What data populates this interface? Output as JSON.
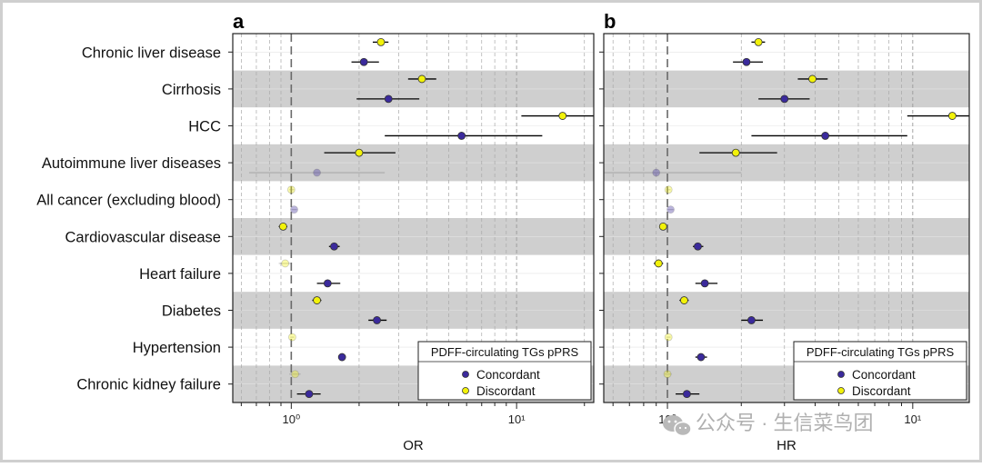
{
  "chart_data": {
    "type": "scatter",
    "panels": [
      {
        "id": "a",
        "panel_label": "a",
        "xlabel": "OR",
        "x_scale": "log",
        "xlim": [
          0.55,
          22
        ],
        "tick_labels": [
          "10⁰",
          "10¹"
        ],
        "tick_values": [
          1,
          10
        ],
        "reference_line": 1
      },
      {
        "id": "b",
        "panel_label": "b",
        "xlabel": "HR",
        "x_scale": "log",
        "xlim": [
          0.55,
          17
        ],
        "tick_labels": [
          "10⁰",
          "10¹"
        ],
        "tick_values": [
          1,
          10
        ],
        "reference_line": 1
      }
    ],
    "categories": [
      "Chronic liver disease",
      "Cirrhosis",
      "HCC",
      "Autoimmune liver diseases",
      "All cancer (excluding blood)",
      "Cardiovascular disease",
      "Heart failure",
      "Diabetes",
      "Hypertension",
      "Chronic kidney failure"
    ],
    "legend": {
      "title": "PDFF-circulating TGs pPRS",
      "placement": "bottom-right",
      "entries": [
        "Concordant",
        "Discordant"
      ]
    },
    "series": [
      {
        "name": "Discordant",
        "color": "#f2f20a",
        "points": {
          "a": [
            {
              "est": 2.5,
              "lo": 2.3,
              "hi": 2.7,
              "sig": true
            },
            {
              "est": 3.8,
              "lo": 3.3,
              "hi": 4.4,
              "sig": true
            },
            {
              "est": 16,
              "lo": 10.5,
              "hi": 24,
              "sig": true
            },
            {
              "est": 2.0,
              "lo": 1.4,
              "hi": 2.9,
              "sig": true
            },
            {
              "est": 1.0,
              "lo": 0.98,
              "hi": 1.03,
              "sig": false
            },
            {
              "est": 0.92,
              "lo": 0.88,
              "hi": 0.96,
              "sig": true
            },
            {
              "est": 0.94,
              "lo": 0.88,
              "hi": 1.0,
              "sig": false
            },
            {
              "est": 1.3,
              "lo": 1.24,
              "hi": 1.36,
              "sig": true
            },
            {
              "est": 1.01,
              "lo": 0.99,
              "hi": 1.03,
              "sig": false
            },
            {
              "est": 1.04,
              "lo": 0.98,
              "hi": 1.1,
              "sig": false
            }
          ],
          "b": [
            {
              "est": 2.35,
              "lo": 2.2,
              "hi": 2.5,
              "sig": true
            },
            {
              "est": 3.9,
              "lo": 3.4,
              "hi": 4.5,
              "sig": true
            },
            {
              "est": 14.5,
              "lo": 9.5,
              "hi": 22,
              "sig": true
            },
            {
              "est": 1.9,
              "lo": 1.35,
              "hi": 2.8,
              "sig": true
            },
            {
              "est": 1.01,
              "lo": 0.99,
              "hi": 1.03,
              "sig": false
            },
            {
              "est": 0.96,
              "lo": 0.93,
              "hi": 0.99,
              "sig": true
            },
            {
              "est": 0.92,
              "lo": 0.88,
              "hi": 0.96,
              "sig": true
            },
            {
              "est": 1.17,
              "lo": 1.12,
              "hi": 1.22,
              "sig": true
            },
            {
              "est": 1.01,
              "lo": 0.99,
              "hi": 1.03,
              "sig": false
            },
            {
              "est": 1.0,
              "lo": 0.97,
              "hi": 1.04,
              "sig": false
            }
          ]
        }
      },
      {
        "name": "Concordant",
        "color": "#3b2a9c",
        "points": {
          "a": [
            {
              "est": 2.1,
              "lo": 1.85,
              "hi": 2.45,
              "sig": true
            },
            {
              "est": 2.7,
              "lo": 1.95,
              "hi": 3.7,
              "sig": true
            },
            {
              "est": 5.7,
              "lo": 2.6,
              "hi": 13,
              "sig": true
            },
            {
              "est": 1.3,
              "lo": 0.65,
              "hi": 2.6,
              "sig": false
            },
            {
              "est": 1.03,
              "lo": 1.0,
              "hi": 1.06,
              "sig": false
            },
            {
              "est": 1.55,
              "lo": 1.47,
              "hi": 1.64,
              "sig": true
            },
            {
              "est": 1.45,
              "lo": 1.3,
              "hi": 1.65,
              "sig": true
            },
            {
              "est": 2.4,
              "lo": 2.2,
              "hi": 2.65,
              "sig": true
            },
            {
              "est": 1.68,
              "lo": 1.62,
              "hi": 1.74,
              "sig": true
            },
            {
              "est": 1.2,
              "lo": 1.06,
              "hi": 1.35,
              "sig": true
            }
          ],
          "b": [
            {
              "est": 2.1,
              "lo": 1.85,
              "hi": 2.45,
              "sig": true
            },
            {
              "est": 3.0,
              "lo": 2.35,
              "hi": 3.8,
              "sig": true
            },
            {
              "est": 4.4,
              "lo": 2.2,
              "hi": 9.5,
              "sig": true
            },
            {
              "est": 0.9,
              "lo": 0.45,
              "hi": 2.0,
              "sig": false
            },
            {
              "est": 1.03,
              "lo": 1.0,
              "hi": 1.06,
              "sig": false
            },
            {
              "est": 1.33,
              "lo": 1.27,
              "hi": 1.4,
              "sig": true
            },
            {
              "est": 1.42,
              "lo": 1.3,
              "hi": 1.6,
              "sig": true
            },
            {
              "est": 2.2,
              "lo": 2.0,
              "hi": 2.45,
              "sig": true
            },
            {
              "est": 1.37,
              "lo": 1.3,
              "hi": 1.45,
              "sig": true
            },
            {
              "est": 1.2,
              "lo": 1.08,
              "hi": 1.35,
              "sig": true
            }
          ]
        }
      }
    ]
  },
  "watermark": {
    "text": "公众号 · 生信菜鸟团",
    "icon": "wechat-icon"
  }
}
